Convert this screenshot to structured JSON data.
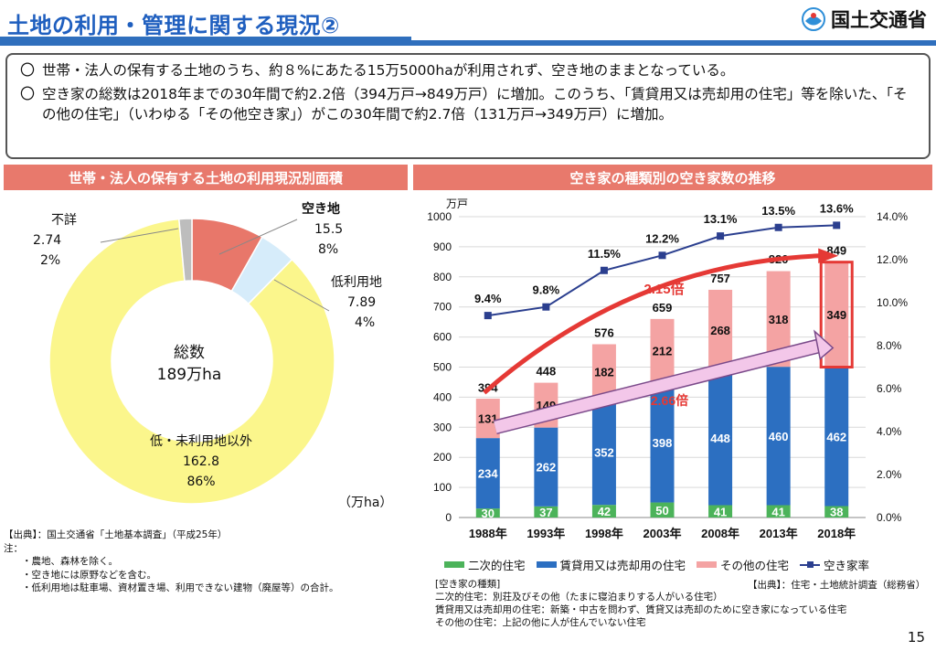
{
  "header": {
    "title": "土地の利用・管理に関する現況②",
    "ministry": "国土交通省"
  },
  "summary": [
    "世帯・法人の保有する土地のうち、約８%にあたる15万5000haが利用されず、空き地のままとなっている。",
    "空き家の総数は2018年までの30年間で約2.2倍（394万戸→849万戸）に増加。このうち、「賃貸用又は売却用の住宅」等を除いた、「その他の住宅」（いわゆる「その他空き家」）がこの30年間で約2.7倍（131万戸→349万戸）に増加。"
  ],
  "summary_mark": "〇",
  "left_panel": {
    "title": "世帯・法人の保有する土地の利用現況別面積",
    "center_1": "総数",
    "center_2": "189万ha",
    "unit": "（万ha）",
    "labels": {
      "akichi": {
        "name": "空き地",
        "value": "15.5",
        "pct": "8%"
      },
      "teiriyo": {
        "name": "低利用地",
        "value": "7.89",
        "pct": "4%"
      },
      "fusho": {
        "name": "不詳",
        "value": "2.74",
        "pct": "2%"
      },
      "other": {
        "name": "低・未利用地以外",
        "value": "162.8",
        "pct": "86%"
      }
    },
    "source": [
      "【出典】：国土交通省「土地基本調査」（平成25年）",
      "注：",
      "・農地、森林を除く。",
      "・空き地には原野などを含む。",
      "・低利用地は駐車場、資材置き場、利用できない建物（廃屋等）の合計。"
    ]
  },
  "chart_data": [
    {
      "type": "pie",
      "title": "世帯・法人の保有する土地の利用現況別面積",
      "categories": [
        "空き地",
        "低利用地",
        "低・未利用地以外",
        "不詳"
      ],
      "values": [
        15.5,
        7.89,
        162.8,
        2.74
      ],
      "percent": [
        8,
        4,
        86,
        2
      ],
      "colors": [
        "#e8776a",
        "#d6ecfa",
        "#fbf68c",
        "#bdbdbd"
      ],
      "total_label": "189万ha",
      "unit": "万ha"
    },
    {
      "type": "bar",
      "stacked": true,
      "title": "空き家の種類別の空き家数の推移",
      "categories": [
        "1988年",
        "1993年",
        "1998年",
        "2003年",
        "2008年",
        "2013年",
        "2018年"
      ],
      "series": [
        {
          "name": "二次的住宅",
          "values": [
            30,
            37,
            42,
            50,
            41,
            41,
            38
          ],
          "color": "#4cb35a"
        },
        {
          "name": "賃貸用又は売却用の住宅",
          "values": [
            234,
            262,
            352,
            398,
            448,
            460,
            462
          ],
          "color": "#2c6fc1"
        },
        {
          "name": "その他の住宅",
          "values": [
            131,
            149,
            182,
            212,
            268,
            318,
            349
          ],
          "color": "#f4a3a3"
        }
      ],
      "totals": [
        394,
        448,
        576,
        659,
        757,
        820,
        849
      ],
      "line_series": {
        "name": "空き家率",
        "values": [
          9.4,
          9.8,
          11.5,
          12.2,
          13.1,
          13.5,
          13.6
        ],
        "labels": [
          "9.4%",
          "9.8%",
          "11.5%",
          "12.2%",
          "13.1%",
          "13.5%",
          "13.6%"
        ],
        "color": "#2b3f8f"
      },
      "ylim": [
        0,
        1000
      ],
      "yticks": [
        "0",
        "100",
        "200",
        "300",
        "400",
        "500",
        "600",
        "700",
        "800",
        "900",
        "1000"
      ],
      "y2lim": [
        0,
        14
      ],
      "y2ticks": [
        "0.0%",
        "2.0%",
        "4.0%",
        "6.0%",
        "8.0%",
        "10.0%",
        "12.0%",
        "14.0%"
      ],
      "ylabel": "万戸",
      "annotations": [
        "2.15倍",
        "2.66倍"
      ]
    }
  ],
  "right_panel": {
    "title": "空き家の種類別の空き家数の推移",
    "yunit": "万戸",
    "legend": [
      "二次的住宅",
      "賃貸用又は売却用の住宅",
      "その他の住宅",
      "空き家率"
    ],
    "types_title": "[空き家の種類]",
    "types": [
      "二次的住宅：別荘及びその他（たまに寝泊まりする人がいる住宅）",
      "賃貸用又は売却用の住宅：新築・中古を問わず、賃貸又は売却のために空き家になっている住宅",
      "その他の住宅：上記の他に人が住んでいない住宅"
    ],
    "source": "【出典】：住宅・土地統計調査（総務省）"
  },
  "page_number": "15"
}
